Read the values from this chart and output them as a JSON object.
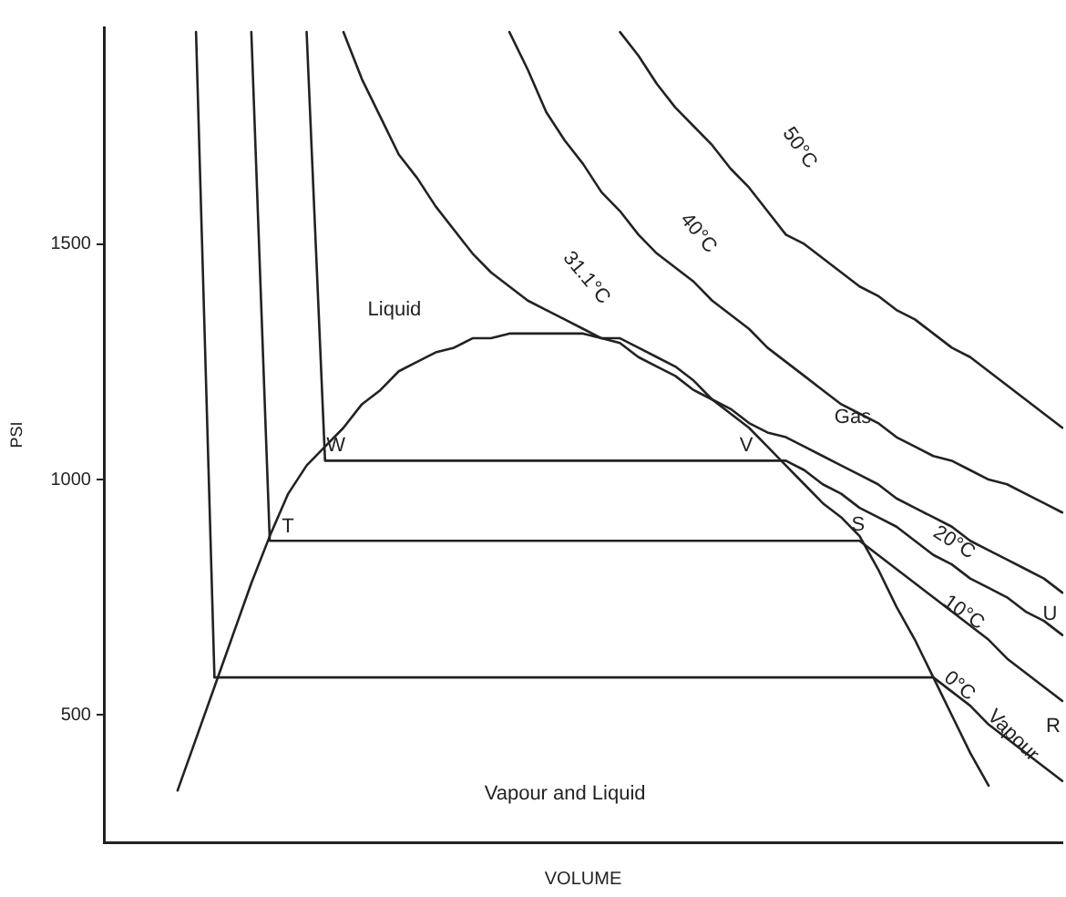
{
  "chart_data": {
    "type": "line",
    "xlabel": "VOLUME",
    "ylabel": "PSI",
    "categories": [
      null,
      null,
      null,
      null,
      null,
      null,
      null,
      null,
      null,
      null,
      null,
      null,
      null,
      null,
      null,
      null,
      null,
      null,
      null,
      null,
      null,
      null,
      null,
      null,
      null,
      null,
      null,
      null,
      null,
      null,
      null,
      null,
      null,
      null,
      null,
      null,
      null,
      null,
      null,
      null,
      null,
      null,
      null,
      null,
      null,
      null,
      null,
      null,
      null,
      null,
      null,
      null,
      null
    ],
    "series": [
      {
        "color": "#222222",
        "values": [
          null,
          null,
          null,
          null,
          340,
          450,
          560,
          670,
          780,
          880,
          970,
          1030,
          1070,
          1110,
          1160,
          1190,
          1230,
          1250,
          1270,
          1280,
          1300,
          1300,
          1310,
          1310,
          1310,
          1310,
          1310,
          1300,
          1300,
          1280,
          1260,
          1240,
          1210,
          1170,
          1140,
          1110,
          1070,
          1030,
          990,
          950,
          920,
          880,
          810,
          730,
          660,
          580,
          500,
          420,
          350,
          null,
          null,
          null,
          null
        ]
      },
      {
        "name": "0°C",
        "color": "#222222",
        "values": [
          null,
          null,
          null,
          null,
          null,
          1950,
          580,
          580,
          580,
          580,
          580,
          580,
          580,
          580,
          580,
          580,
          580,
          580,
          580,
          580,
          580,
          580,
          580,
          580,
          580,
          580,
          580,
          580,
          580,
          580,
          580,
          580,
          580,
          580,
          580,
          580,
          580,
          580,
          580,
          580,
          580,
          580,
          580,
          580,
          580,
          580,
          550,
          520,
          480,
          450,
          420,
          390,
          360
        ]
      },
      {
        "name": "10°C",
        "color": "#222222",
        "values": [
          null,
          null,
          null,
          null,
          null,
          null,
          null,
          null,
          1950,
          870,
          870,
          870,
          870,
          870,
          870,
          870,
          870,
          870,
          870,
          870,
          870,
          870,
          870,
          870,
          870,
          870,
          870,
          870,
          870,
          870,
          870,
          870,
          870,
          870,
          870,
          870,
          870,
          870,
          870,
          870,
          870,
          870,
          840,
          810,
          780,
          750,
          720,
          690,
          660,
          620,
          590,
          560,
          530
        ]
      },
      {
        "name": "20°C",
        "color": "#222222",
        "values": [
          null,
          null,
          null,
          null,
          null,
          null,
          null,
          null,
          null,
          null,
          null,
          1950,
          1040,
          1040,
          1040,
          1040,
          1040,
          1040,
          1040,
          1040,
          1040,
          1040,
          1040,
          1040,
          1040,
          1040,
          1040,
          1040,
          1040,
          1040,
          1040,
          1040,
          1040,
          1040,
          1040,
          1040,
          1040,
          1040,
          1020,
          990,
          970,
          940,
          920,
          900,
          870,
          840,
          820,
          790,
          770,
          750,
          720,
          700,
          670
        ]
      },
      {
        "name": "31.1°C",
        "color": "#222222",
        "values": [
          null,
          null,
          null,
          null,
          null,
          null,
          null,
          null,
          null,
          null,
          null,
          null,
          null,
          1950,
          1850,
          1770,
          1690,
          1640,
          1580,
          1530,
          1480,
          1440,
          1410,
          1380,
          1360,
          1340,
          1320,
          1300,
          1290,
          1260,
          1240,
          1220,
          1190,
          1170,
          1150,
          1120,
          1100,
          1090,
          1070,
          1050,
          1030,
          1010,
          990,
          960,
          940,
          920,
          900,
          870,
          850,
          830,
          810,
          790,
          760
        ]
      },
      {
        "name": "40°C",
        "color": "#222222",
        "values": [
          null,
          null,
          null,
          null,
          null,
          null,
          null,
          null,
          null,
          null,
          null,
          null,
          null,
          null,
          null,
          null,
          null,
          null,
          null,
          null,
          null,
          null,
          1950,
          1870,
          1780,
          1720,
          1670,
          1610,
          1570,
          1520,
          1480,
          1450,
          1420,
          1380,
          1350,
          1320,
          1280,
          1250,
          1220,
          1190,
          1160,
          1140,
          1120,
          1090,
          1070,
          1050,
          1040,
          1020,
          1000,
          990,
          970,
          950,
          930
        ]
      },
      {
        "name": "50°C",
        "color": "#222222",
        "values": [
          null,
          null,
          null,
          null,
          null,
          null,
          null,
          null,
          null,
          null,
          null,
          null,
          null,
          null,
          null,
          null,
          null,
          null,
          null,
          null,
          null,
          null,
          null,
          null,
          null,
          null,
          null,
          null,
          1950,
          1900,
          1840,
          1790,
          1750,
          1710,
          1660,
          1620,
          1570,
          1520,
          1500,
          1470,
          1440,
          1410,
          1390,
          1360,
          1340,
          1310,
          1280,
          1260,
          1230,
          1200,
          1170,
          1140,
          1110
        ]
      }
    ],
    "annotations": [
      "Liquid",
      "Gas",
      "Vapour and Liquid",
      "Vapour",
      "W",
      "V",
      "T",
      "S",
      "U",
      "R"
    ],
    "ylim": [
      230,
      1960
    ],
    "yticks": [
      500,
      1000,
      1500
    ],
    "tick_labels": "y",
    "grid": false,
    "legend": false,
    "marker": "none",
    "line_style": "solid"
  }
}
